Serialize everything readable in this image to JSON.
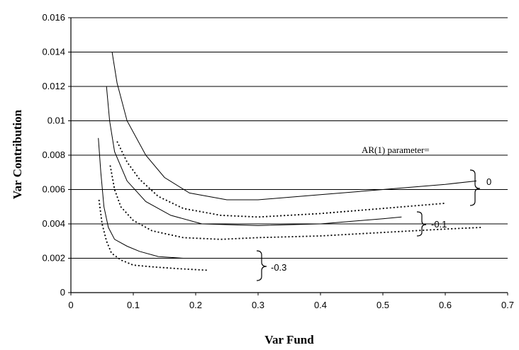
{
  "chart_data": {
    "type": "line",
    "title": "",
    "xlabel": "Var Fund",
    "ylabel": "Var Contribution",
    "xlim": [
      0,
      0.7
    ],
    "ylim": [
      0,
      0.016
    ],
    "x_ticks": [
      "0",
      "0.1",
      "0.2",
      "0.3",
      "0.4",
      "0.5",
      "0.6",
      "0.7"
    ],
    "y_ticks": [
      "0",
      "0.002",
      "0.004",
      "0.006",
      "0.008",
      "0.01",
      "0.012",
      "0.014",
      "0.016"
    ],
    "grid": "horizontal",
    "annotation": "AR(1) parameter=",
    "group_labels": [
      "0",
      "-0.1",
      "-0.3"
    ],
    "series": [
      {
        "group": "0",
        "style": "solid",
        "x": [
          0.066,
          0.074,
          0.09,
          0.12,
          0.15,
          0.19,
          0.25,
          0.3,
          0.4,
          0.5,
          0.6,
          0.65
        ],
        "y": [
          0.014,
          0.0122,
          0.01,
          0.008,
          0.0067,
          0.0058,
          0.0054,
          0.0054,
          0.0057,
          0.006,
          0.0063,
          0.0065
        ]
      },
      {
        "group": "0",
        "style": "dotted",
        "x": [
          0.074,
          0.09,
          0.11,
          0.14,
          0.18,
          0.24,
          0.3,
          0.4,
          0.5,
          0.6
        ],
        "y": [
          0.0088,
          0.0076,
          0.0066,
          0.0056,
          0.0049,
          0.0045,
          0.0044,
          0.0046,
          0.0049,
          0.0052
        ]
      },
      {
        "group": "-0.1",
        "style": "solid",
        "x": [
          0.057,
          0.062,
          0.07,
          0.09,
          0.12,
          0.16,
          0.21,
          0.3,
          0.4,
          0.5,
          0.53
        ],
        "y": [
          0.012,
          0.01,
          0.0082,
          0.0065,
          0.0053,
          0.0045,
          0.004,
          0.0039,
          0.004,
          0.0043,
          0.0044
        ]
      },
      {
        "group": "-0.1",
        "style": "dotted",
        "x": [
          0.063,
          0.07,
          0.08,
          0.1,
          0.13,
          0.18,
          0.24,
          0.3,
          0.4,
          0.5,
          0.6,
          0.66
        ],
        "y": [
          0.0074,
          0.006,
          0.005,
          0.0042,
          0.0036,
          0.0032,
          0.0031,
          0.0032,
          0.0033,
          0.0035,
          0.0037,
          0.0038
        ]
      },
      {
        "group": "-0.3",
        "style": "solid",
        "x": [
          0.044,
          0.048,
          0.053,
          0.06,
          0.07,
          0.09,
          0.11,
          0.14,
          0.18,
          0.22
        ],
        "y": [
          0.009,
          0.007,
          0.005,
          0.0038,
          0.0031,
          0.0027,
          0.0024,
          0.0021,
          0.002,
          0.002
        ]
      },
      {
        "group": "-0.3",
        "style": "dotted",
        "x": [
          0.045,
          0.05,
          0.057,
          0.065,
          0.08,
          0.1,
          0.13,
          0.17,
          0.22
        ],
        "y": [
          0.0054,
          0.004,
          0.003,
          0.0023,
          0.0019,
          0.0016,
          0.0015,
          0.0014,
          0.0013
        ]
      }
    ]
  }
}
